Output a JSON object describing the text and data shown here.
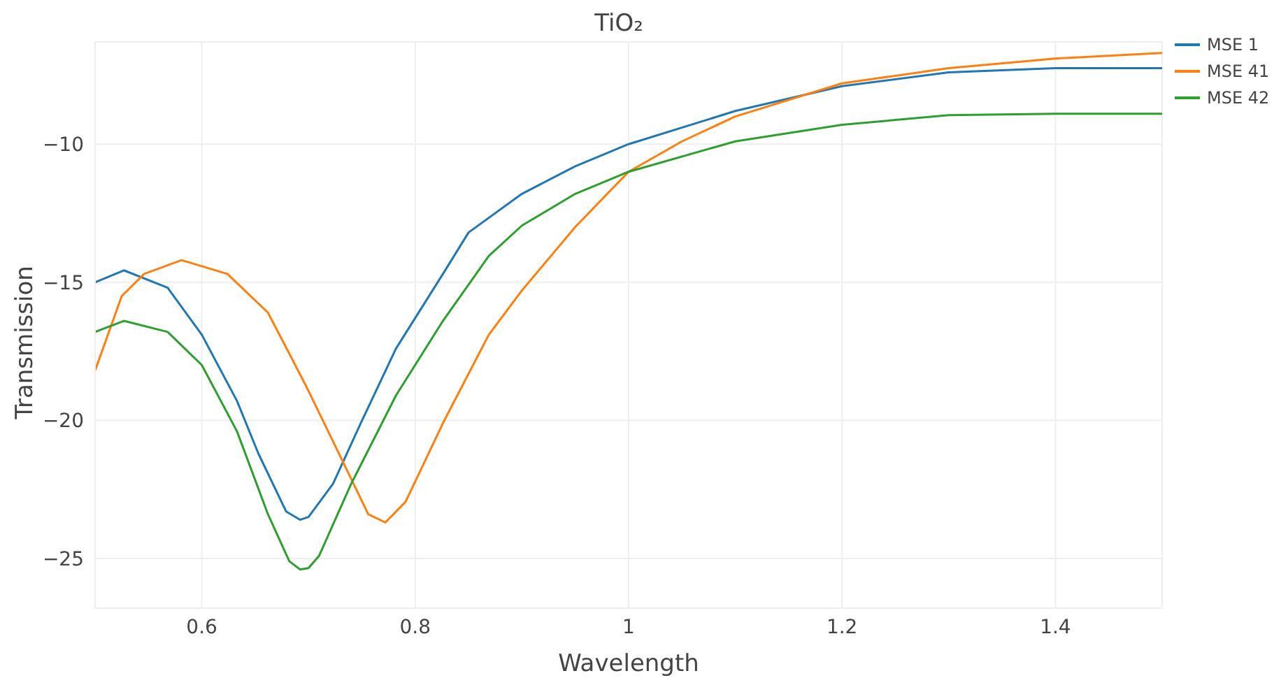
{
  "chart_data": {
    "type": "line",
    "title": "TiO₂",
    "xlabel": "Wavelength",
    "ylabel": "Transmission",
    "xlim": [
      0.5,
      1.5
    ],
    "xticks": [
      0.6,
      0.8,
      1,
      1.2,
      1.4
    ],
    "ylim": [
      -26.8,
      -6.3
    ],
    "yticks": [
      -25,
      -20,
      -15,
      -10
    ],
    "grid": true,
    "legend": "top right",
    "marker": "none",
    "line_style": "solid",
    "series": [
      {
        "name": "MSE 1",
        "color": "#1f77b4",
        "x": [
          0.5,
          0.527,
          0.568,
          0.6,
          0.633,
          0.653,
          0.679,
          0.692,
          0.7,
          0.723,
          0.749,
          0.782,
          0.826,
          0.85,
          0.9,
          0.95,
          1,
          1.1,
          1.2,
          1.3,
          1.4,
          1.5
        ],
        "values": [
          -15,
          -14.57,
          -15.2,
          -16.9,
          -19.3,
          -21.2,
          -23.3,
          -23.6,
          -23.5,
          -22.3,
          -20.1,
          -17.4,
          -14.7,
          -13.2,
          -11.8,
          -10.8,
          -10,
          -8.8,
          -7.9,
          -7.4,
          -7.25,
          -7.25
        ]
      },
      {
        "name": "MSE 41",
        "color": "#ff7f0e",
        "x": [
          0.5,
          0.525,
          0.546,
          0.581,
          0.624,
          0.662,
          0.697,
          0.731,
          0.756,
          0.772,
          0.791,
          0.826,
          0.869,
          0.9,
          0.95,
          1,
          1.05,
          1.1,
          1.2,
          1.3,
          1.4,
          1.5
        ],
        "values": [
          -18.2,
          -15.5,
          -14.7,
          -14.2,
          -14.7,
          -16.1,
          -18.7,
          -21.4,
          -23.4,
          -23.7,
          -22.95,
          -20.1,
          -16.9,
          -15.3,
          -13,
          -11,
          -9.9,
          -9,
          -7.8,
          -7.25,
          -6.9,
          -6.7
        ]
      },
      {
        "name": "MSE 42",
        "color": "#2ca02c",
        "x": [
          0.5,
          0.527,
          0.568,
          0.6,
          0.633,
          0.662,
          0.682,
          0.692,
          0.7,
          0.71,
          0.74,
          0.782,
          0.826,
          0.869,
          0.9,
          0.95,
          1,
          1.1,
          1.2,
          1.3,
          1.4,
          1.5
        ],
        "values": [
          -16.8,
          -16.4,
          -16.8,
          -18,
          -20.4,
          -23.4,
          -25.1,
          -25.4,
          -25.35,
          -24.9,
          -22.3,
          -19.1,
          -16.4,
          -14.05,
          -12.95,
          -11.8,
          -11,
          -9.9,
          -9.3,
          -8.95,
          -8.9,
          -8.9
        ]
      }
    ]
  }
}
